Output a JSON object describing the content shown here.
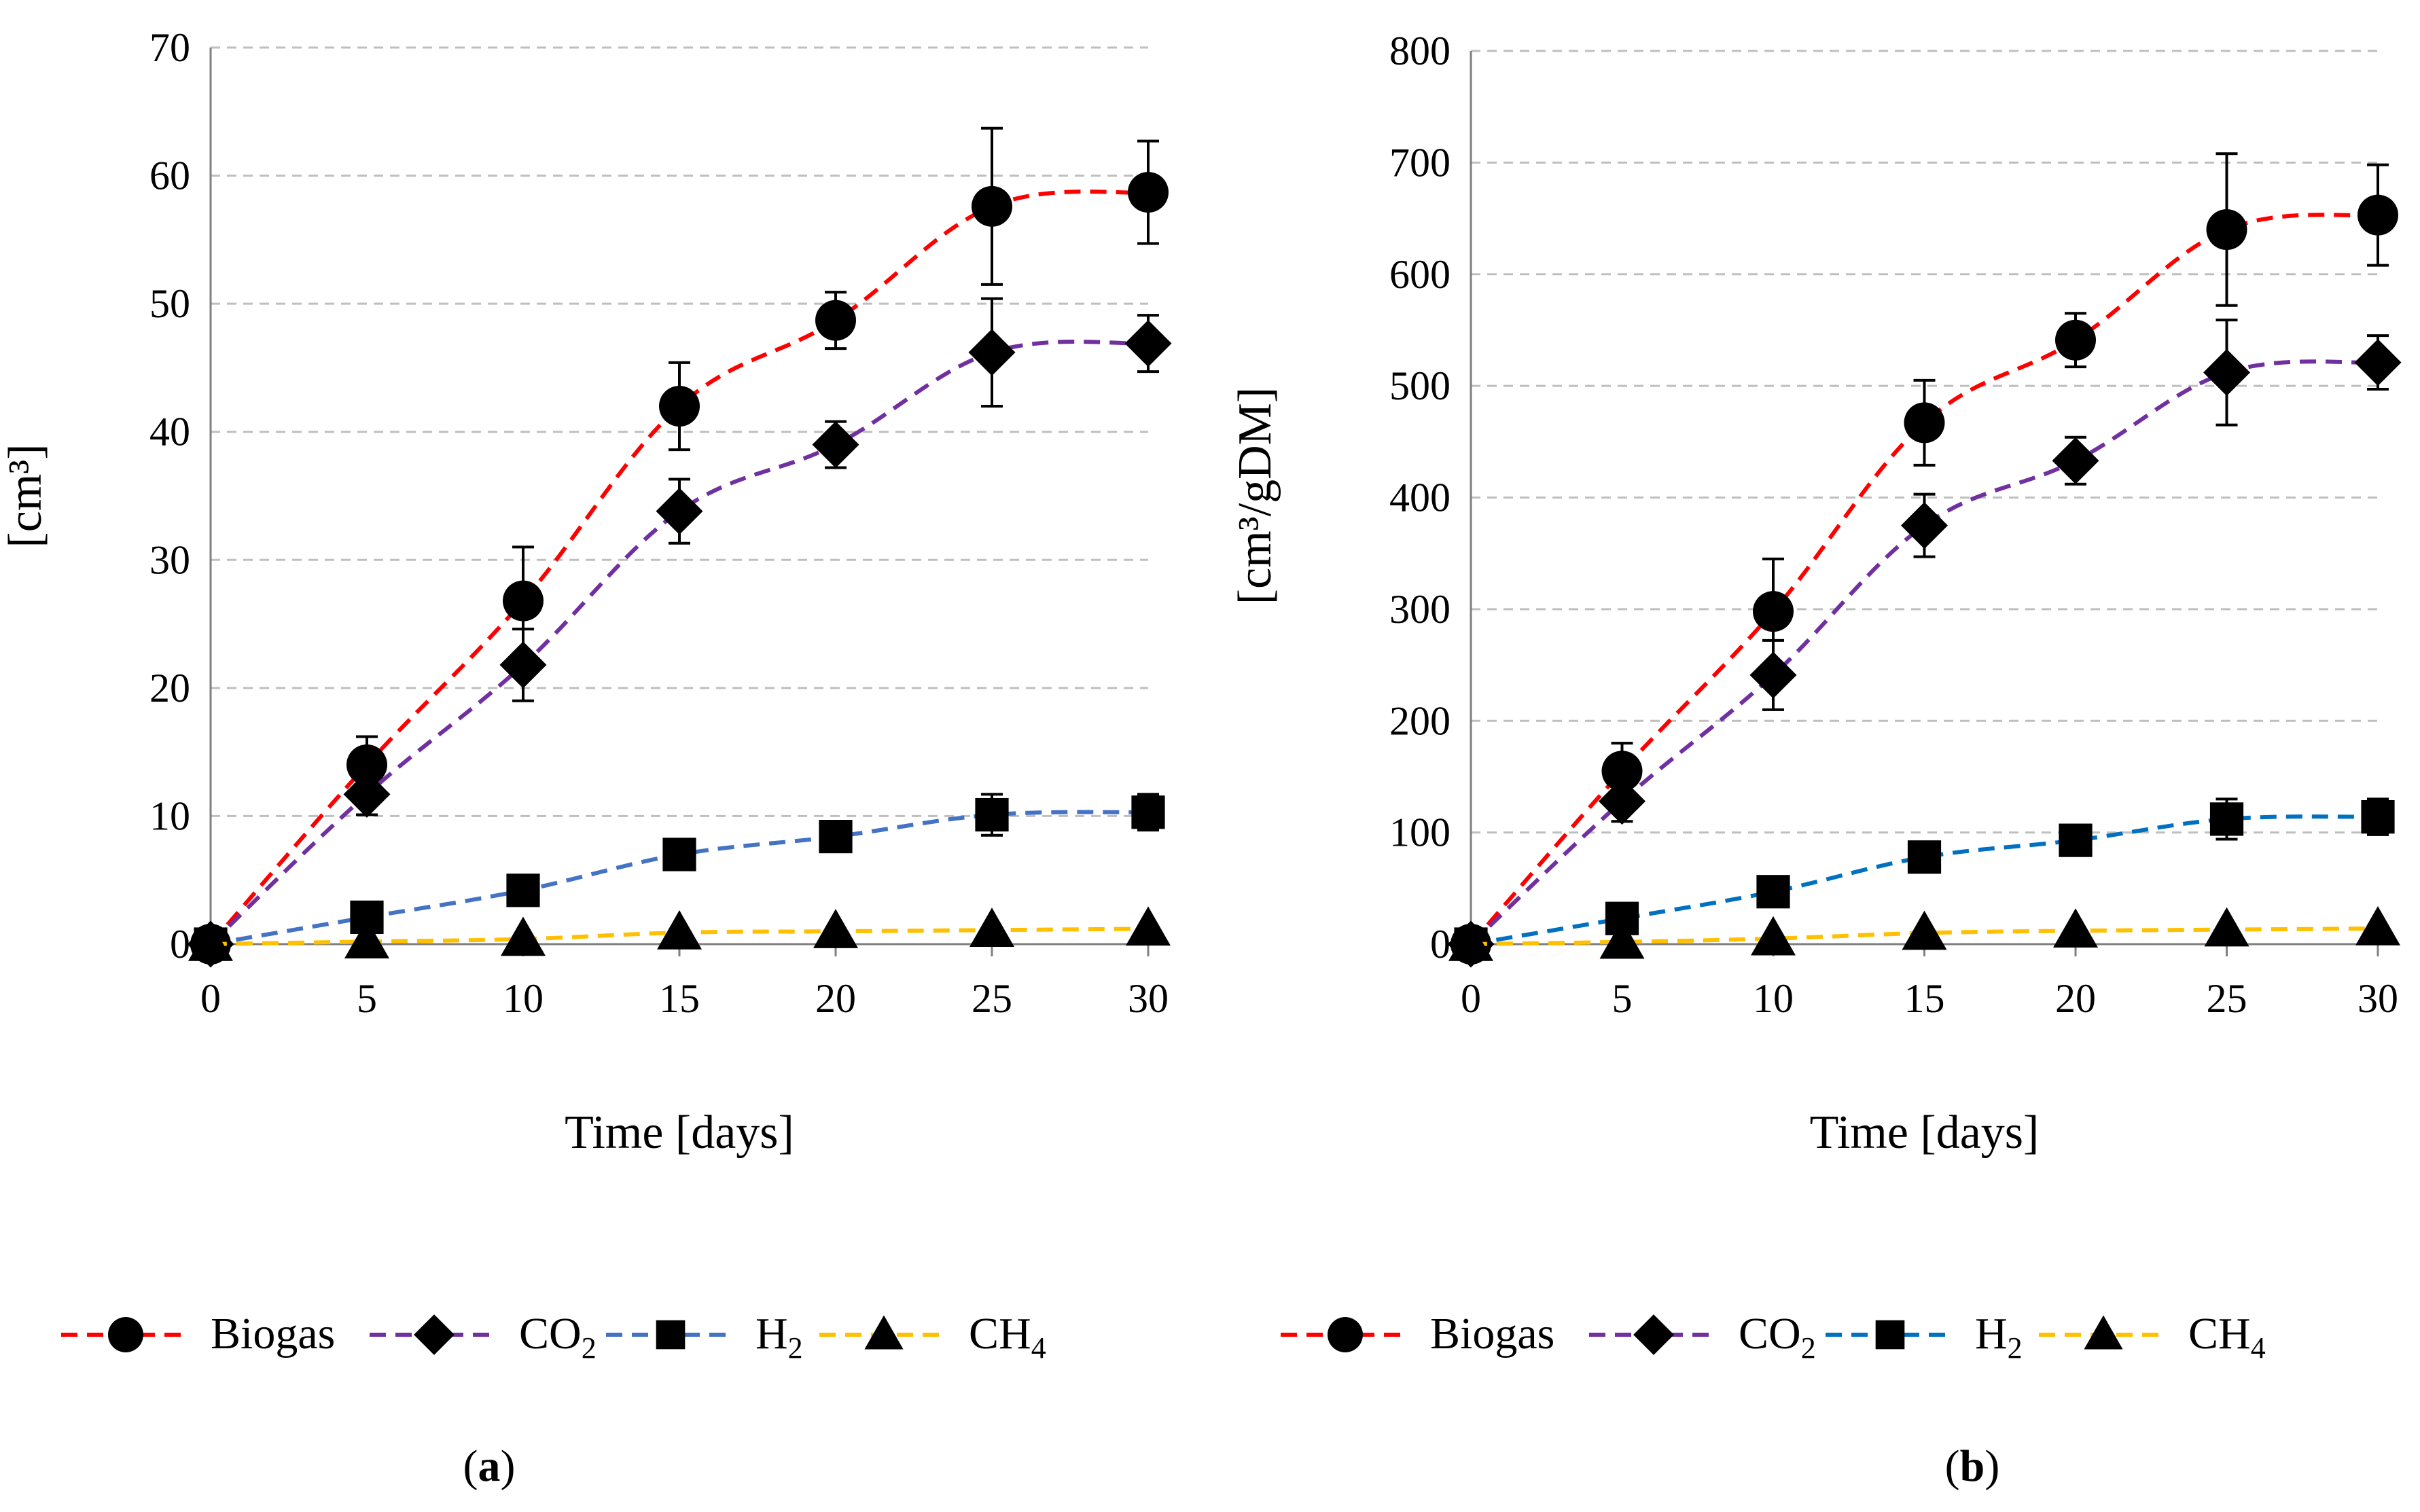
{
  "chart_data": [
    {
      "type": "line",
      "panel_label": "a",
      "title": "",
      "xlabel": "Time [days]",
      "ylabel": "[cm³]",
      "x": [
        0,
        5,
        10,
        15,
        20,
        25,
        30
      ],
      "xlim": [
        0,
        30
      ],
      "ylim": [
        0,
        70
      ],
      "yticks": [
        0,
        10,
        20,
        30,
        40,
        50,
        60,
        70
      ],
      "xticks": [
        0,
        5,
        10,
        15,
        20,
        25,
        30
      ],
      "grid": true,
      "legend_position": "bottom",
      "series": [
        {
          "name": "Biogas",
          "label_main": "Biogas",
          "label_sub": "",
          "marker": "circle",
          "color": "#ff0000",
          "values": [
            0,
            14,
            26.8,
            42,
            48.7,
            57.6,
            58.7
          ],
          "errors": [
            0,
            2.2,
            4.2,
            3.4,
            2.2,
            6.1,
            4.0
          ]
        },
        {
          "name": "CO2",
          "label_main": "CO",
          "label_sub": "2",
          "marker": "diamond",
          "color": "#7030a0",
          "values": [
            0,
            11.7,
            21.8,
            33.8,
            39,
            46.2,
            46.9
          ],
          "errors": [
            0,
            1.6,
            2.8,
            2.5,
            1.8,
            4.2,
            2.2
          ]
        },
        {
          "name": "H2",
          "label_main": "H",
          "label_sub": "2",
          "marker": "square",
          "color": "#4472c4",
          "values": [
            0,
            2.1,
            4.2,
            7,
            8.4,
            10.1,
            10.3
          ],
          "errors": [
            0,
            0,
            0,
            0,
            0,
            1.6,
            1.4
          ]
        },
        {
          "name": "CH4",
          "label_main": "CH",
          "label_sub": "4",
          "marker": "triangle",
          "color": "#ffc000",
          "values": [
            0,
            0.2,
            0.4,
            0.9,
            1.0,
            1.1,
            1.2
          ],
          "errors": [
            0,
            0,
            0,
            0,
            0,
            0,
            0
          ]
        }
      ]
    },
    {
      "type": "line",
      "panel_label": "b",
      "title": "",
      "xlabel": "Time [days]",
      "ylabel": "[cm³/gDM]",
      "x": [
        0,
        5,
        10,
        15,
        20,
        25,
        30
      ],
      "xlim": [
        0,
        30
      ],
      "ylim": [
        0,
        800
      ],
      "yticks": [
        0,
        100,
        200,
        300,
        400,
        500,
        600,
        700,
        800
      ],
      "xticks": [
        0,
        5,
        10,
        15,
        20,
        25,
        30
      ],
      "grid": true,
      "legend_position": "bottom",
      "series": [
        {
          "name": "Biogas",
          "label_main": "Biogas",
          "label_sub": "",
          "marker": "circle",
          "color": "#ff0000",
          "values": [
            0,
            155,
            298,
            467,
            541,
            640,
            653
          ],
          "errors": [
            0,
            25,
            47,
            38,
            24,
            68,
            45
          ]
        },
        {
          "name": "CO2",
          "label_main": "CO",
          "label_sub": "2",
          "marker": "diamond",
          "color": "#7030a0",
          "values": [
            0,
            128,
            241,
            375,
            433,
            512,
            521
          ],
          "errors": [
            0,
            18,
            31,
            28,
            21,
            47,
            24
          ]
        },
        {
          "name": "H2",
          "label_main": "H",
          "label_sub": "2",
          "marker": "square",
          "color": "#0070c0",
          "values": [
            0,
            23,
            47,
            78,
            93,
            112,
            114
          ],
          "errors": [
            0,
            0,
            0,
            0,
            0,
            18,
            16
          ]
        },
        {
          "name": "CH4",
          "label_main": "CH",
          "label_sub": "4",
          "marker": "triangle",
          "color": "#ffc000",
          "values": [
            0,
            2,
            5,
            10,
            12,
            13,
            14
          ],
          "errors": [
            0,
            0,
            0,
            0,
            0,
            0,
            0
          ]
        }
      ]
    }
  ]
}
